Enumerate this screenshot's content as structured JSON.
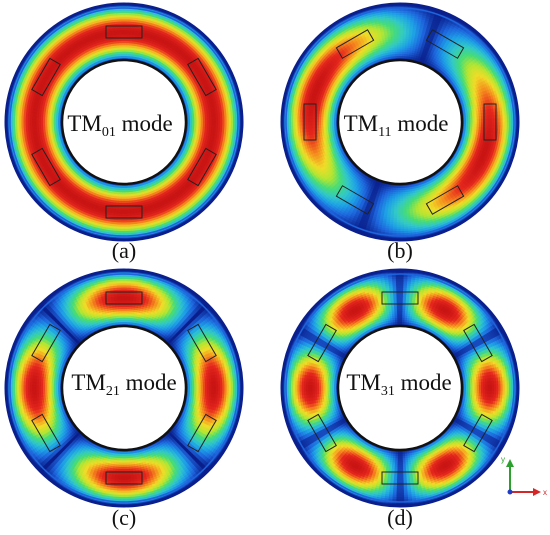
{
  "panels": [
    {
      "id": "a",
      "caption": "(a)",
      "mode_label": {
        "prefix": "TM",
        "subscript": "01",
        "suffix": " mode"
      },
      "azimuthal_order": 0
    },
    {
      "id": "b",
      "caption": "(b)",
      "mode_label": {
        "prefix": "TM",
        "subscript": "11",
        "suffix": " mode"
      },
      "azimuthal_order": 1
    },
    {
      "id": "c",
      "caption": "(c)",
      "mode_label": {
        "prefix": "TM",
        "subscript": "21",
        "suffix": " mode"
      },
      "azimuthal_order": 2
    },
    {
      "id": "d",
      "caption": "(d)",
      "mode_label": {
        "prefix": "TM",
        "subscript": "31",
        "suffix": " mode"
      },
      "azimuthal_order": 3
    }
  ],
  "axis_triad": {
    "y_label": "y",
    "x_label": "x",
    "y_color": "#2ca02c",
    "x_color": "#d62728"
  },
  "colormap": [
    "#0a1f8c",
    "#1e64dc",
    "#1ea0e6",
    "#32c8c8",
    "#46dc78",
    "#b4e632",
    "#f0dc28",
    "#f58c1e",
    "#e6281e",
    "#c81414"
  ]
}
